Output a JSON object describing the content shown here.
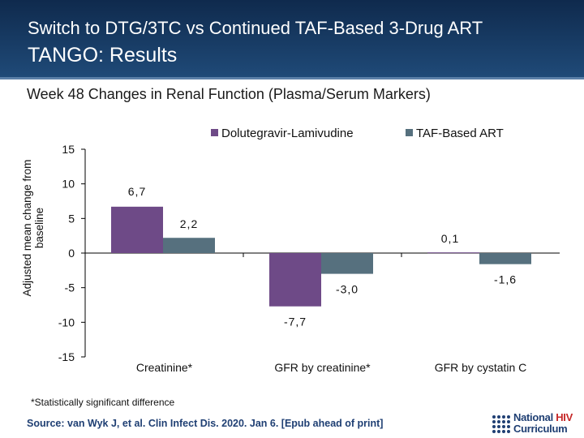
{
  "header": {
    "title_line1": "Switch to DTG/3TC vs Continued TAF-Based 3-Drug ART",
    "title_line2": "TANGO: Results"
  },
  "subtitle": "Week 48 Changes in Renal Function (Plasma/Serum Markers)",
  "footnote": "*Statistically significant difference",
  "source": "Source: van Wyk J, et al. Clin Infect Dis. 2020. Jan 6. [Epub ahead of print]",
  "logo": {
    "line1_a": "National ",
    "line1_b": "HIV",
    "line2": "Curriculum"
  },
  "colors": {
    "header": "#1a3a63",
    "dtg": "#6e4a87",
    "taf": "#56707e"
  },
  "chart_data": {
    "type": "bar",
    "ylabel": "Adjusted mean change from baseline",
    "ylim": [
      -15,
      15
    ],
    "yticks": [
      15,
      10,
      5,
      0,
      -5,
      -10,
      -15
    ],
    "categories": [
      "Creatinine*",
      "GFR by creatinine*",
      "GFR by cystatin C"
    ],
    "series": [
      {
        "name": "Dolutegravir-Lamivudine",
        "values": [
          6.7,
          -7.7,
          0.1
        ],
        "labels": [
          "6,7",
          "-7,7",
          "0,1"
        ],
        "color": "#6e4a87"
      },
      {
        "name": "TAF-Based ART",
        "values": [
          2.2,
          -3.0,
          -1.6
        ],
        "labels": [
          "2,2",
          "-3,0",
          "-1,6"
        ],
        "color": "#56707e"
      }
    ],
    "legend_position": "top-right"
  }
}
